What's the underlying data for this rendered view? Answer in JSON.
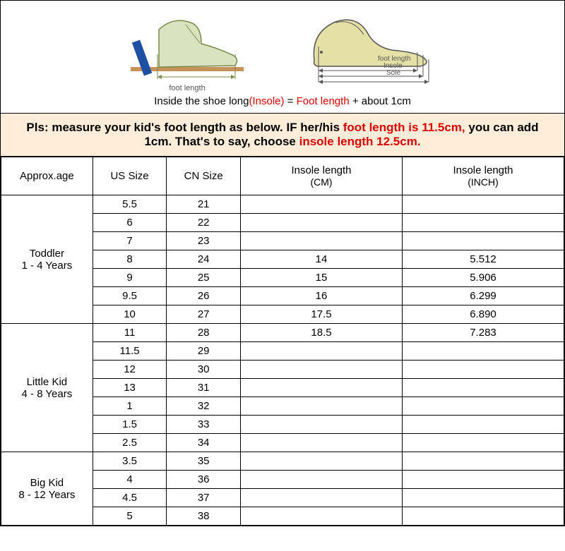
{
  "diagrams": {
    "left_label": "foot length",
    "right_internal": {
      "line1": "foot length",
      "line2": "Insole",
      "line3": "Sole"
    },
    "left_colors": {
      "foot_fill": "#d9e3c0",
      "foot_stroke": "#7a8a4a",
      "ground": "#c5935a",
      "pencil": "#1d4fa3"
    },
    "right_colors": {
      "shoe_fill": "#e5e0a5",
      "shoe_stroke": "#555"
    }
  },
  "formula": {
    "pre": "Inside the shoe long",
    "insole": "(Insole)",
    "eq": " = ",
    "foot": "Foot length",
    "post": " + about 1cm"
  },
  "instruction": {
    "part1": "Pls: measure your kid's foot length as below. IF her/his ",
    "red1": "foot length is 11.5cm,",
    "part2": " you can add 1cm. That's to say, choose ",
    "red2": "insole length 12.5cm."
  },
  "headers": {
    "approx": "Approx.age",
    "us": "US Size",
    "cn": "CN Size",
    "insole_cm_top": "Insole length",
    "insole_cm_sub": "(CM)",
    "insole_in_top": "Insole length",
    "insole_in_sub": "(INCH)"
  },
  "groups": [
    {
      "name": "Toddler",
      "range": "1 - 4 Years",
      "rows": [
        {
          "us": "5.5",
          "cn": "21",
          "cm": "",
          "in": ""
        },
        {
          "us": "6",
          "cn": "22",
          "cm": "",
          "in": ""
        },
        {
          "us": "7",
          "cn": "23",
          "cm": "",
          "in": ""
        },
        {
          "us": "8",
          "cn": "24",
          "cm": "14",
          "in": "5.512"
        },
        {
          "us": "9",
          "cn": "25",
          "cm": "15",
          "in": "5.906"
        },
        {
          "us": "9.5",
          "cn": "26",
          "cm": "16",
          "in": "6.299"
        },
        {
          "us": "10",
          "cn": "27",
          "cm": "17.5",
          "in": "6.890"
        }
      ]
    },
    {
      "name": "Little Kid",
      "range": "4 - 8 Years",
      "rows": [
        {
          "us": "11",
          "cn": "28",
          "cm": "18.5",
          "in": "7.283"
        },
        {
          "us": "11.5",
          "cn": "29",
          "cm": "",
          "in": ""
        },
        {
          "us": "12",
          "cn": "30",
          "cm": "",
          "in": ""
        },
        {
          "us": "13",
          "cn": "31",
          "cm": "",
          "in": ""
        },
        {
          "us": "1",
          "cn": "32",
          "cm": "",
          "in": ""
        },
        {
          "us": "1.5",
          "cn": "33",
          "cm": "",
          "in": ""
        },
        {
          "us": "2.5",
          "cn": "34",
          "cm": "",
          "in": ""
        }
      ]
    },
    {
      "name": "Big Kid",
      "range": "8 - 12 Years",
      "rows": [
        {
          "us": "3.5",
          "cn": "35",
          "cm": "",
          "in": ""
        },
        {
          "us": "4",
          "cn": "36",
          "cm": "",
          "in": ""
        },
        {
          "us": "4.5",
          "cn": "37",
          "cm": "",
          "in": ""
        },
        {
          "us": "5",
          "cn": "38",
          "cm": "",
          "in": ""
        }
      ]
    }
  ]
}
